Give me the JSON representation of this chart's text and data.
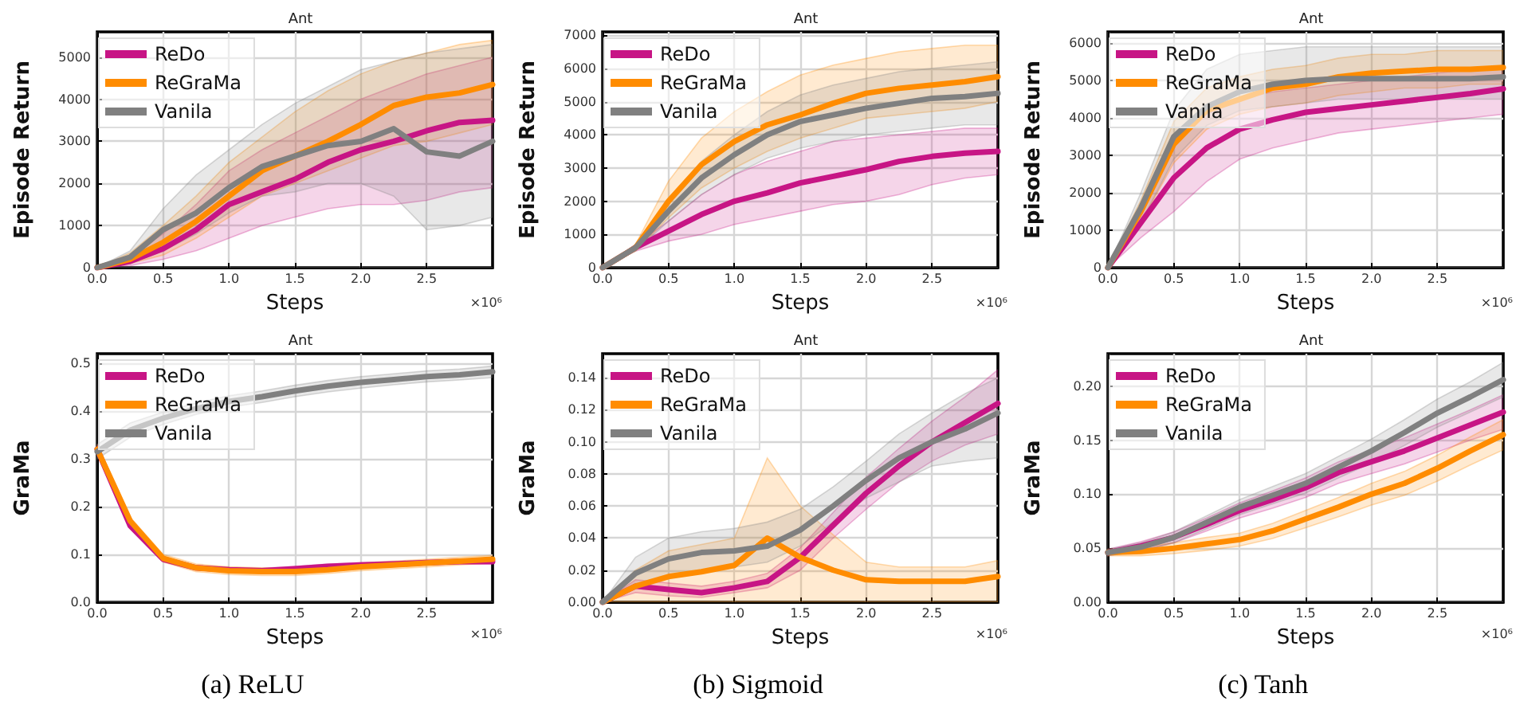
{
  "chart_data": [
    {
      "type": "line",
      "title": "Ant",
      "xlabel": "Steps",
      "ylabel": "Episode Return",
      "x": [
        0,
        0.25,
        0.5,
        0.75,
        1,
        1.25,
        1.5,
        1.75,
        2,
        2.25,
        2.5,
        2.75,
        3
      ],
      "xlim": [
        0,
        3
      ],
      "xticks": [
        {
          "value": 0,
          "label": "0.0"
        },
        {
          "value": 0.5,
          "label": "0.5"
        },
        {
          "value": 1,
          "label": "1.0"
        },
        {
          "value": 1.5,
          "label": "1.5"
        },
        {
          "value": 2,
          "label": "2.0"
        },
        {
          "value": 2.5,
          "label": "2.5"
        }
      ],
      "ylim": [
        0,
        5600
      ],
      "yticks": [
        0,
        1000,
        2000,
        3000,
        4000,
        5000
      ],
      "grid": true,
      "legend": "top left",
      "annotations": [
        "×10⁶"
      ],
      "series": [
        {
          "name": "ReDo",
          "color": "#c71585",
          "values": [
            0,
            150,
            450,
            900,
            1500,
            1800,
            2100,
            2500,
            2800,
            3000,
            3250,
            3450,
            3500
          ],
          "lower": [
            0,
            50,
            200,
            400,
            700,
            1000,
            1200,
            1400,
            1500,
            1500,
            1600,
            1800,
            1900
          ],
          "upper": [
            0,
            300,
            800,
            1500,
            2300,
            2800,
            3200,
            3600,
            4000,
            4300,
            4600,
            4800,
            5000
          ]
        },
        {
          "name": "ReGraMa",
          "color": "#ff8c00",
          "values": [
            0,
            200,
            600,
            1100,
            1700,
            2300,
            2650,
            3000,
            3400,
            3850,
            4050,
            4150,
            4350
          ],
          "lower": [
            0,
            100,
            300,
            700,
            1200,
            1700,
            2000,
            2300,
            2600,
            2900,
            3000,
            3200,
            3400
          ],
          "upper": [
            0,
            350,
            1000,
            1700,
            2500,
            3100,
            3700,
            4200,
            4600,
            4900,
            5100,
            5300,
            5400
          ]
        },
        {
          "name": "Vanila",
          "color": "#808080",
          "values": [
            0,
            250,
            900,
            1300,
            1900,
            2400,
            2650,
            2900,
            3000,
            3300,
            2750,
            2650,
            3000
          ],
          "lower": [
            0,
            100,
            400,
            800,
            1300,
            1700,
            1800,
            2000,
            2000,
            1700,
            900,
            1000,
            1200
          ],
          "upper": [
            0,
            400,
            1400,
            2200,
            2800,
            3400,
            3900,
            4300,
            4700,
            4900,
            5100,
            5200,
            5300
          ]
        }
      ]
    },
    {
      "type": "line",
      "title": "Ant",
      "xlabel": "Steps",
      "ylabel": "Episode Return",
      "x": [
        0,
        0.25,
        0.5,
        0.75,
        1,
        1.25,
        1.5,
        1.75,
        2,
        2.25,
        2.5,
        2.75,
        3
      ],
      "xlim": [
        0,
        3
      ],
      "xticks": [
        {
          "value": 0,
          "label": "0.0"
        },
        {
          "value": 0.5,
          "label": "0.5"
        },
        {
          "value": 1,
          "label": "1.0"
        },
        {
          "value": 1.5,
          "label": "1.5"
        },
        {
          "value": 2,
          "label": "2.0"
        },
        {
          "value": 2.5,
          "label": "2.5"
        }
      ],
      "ylim": [
        0,
        7100
      ],
      "yticks": [
        0,
        1000,
        2000,
        3000,
        4000,
        5000,
        6000,
        7000
      ],
      "grid": true,
      "legend": "top left",
      "annotations": [
        "×10⁶"
      ],
      "series": [
        {
          "name": "ReDo",
          "color": "#c71585",
          "values": [
            0,
            600,
            1100,
            1600,
            2000,
            2250,
            2550,
            2750,
            2950,
            3200,
            3350,
            3450,
            3500
          ],
          "lower": [
            0,
            500,
            800,
            1000,
            1300,
            1500,
            1700,
            1900,
            2000,
            2200,
            2500,
            2700,
            2800
          ],
          "upper": [
            0,
            700,
            1400,
            2200,
            2800,
            3200,
            3500,
            3800,
            3900,
            4000,
            4100,
            4200,
            4200
          ]
        },
        {
          "name": "ReGraMa",
          "color": "#ff8c00",
          "values": [
            0,
            600,
            2000,
            3100,
            3800,
            4300,
            4600,
            4950,
            5250,
            5400,
            5500,
            5600,
            5750
          ],
          "lower": [
            0,
            500,
            1500,
            2400,
            3000,
            3500,
            3900,
            4200,
            4500,
            4600,
            4700,
            4800,
            5000
          ],
          "upper": [
            0,
            700,
            2600,
            3900,
            4700,
            5300,
            5800,
            6100,
            6300,
            6500,
            6600,
            6700,
            6700
          ]
        },
        {
          "name": "Vanila",
          "color": "#808080",
          "values": [
            0,
            600,
            1700,
            2700,
            3400,
            4000,
            4400,
            4600,
            4800,
            4950,
            5100,
            5150,
            5250
          ],
          "lower": [
            0,
            500,
            1400,
            2200,
            2800,
            3300,
            3600,
            3800,
            4000,
            4100,
            4200,
            4300,
            4300
          ],
          "upper": [
            0,
            700,
            2000,
            3200,
            4000,
            4700,
            5200,
            5500,
            5700,
            5900,
            6000,
            6100,
            6200
          ]
        }
      ]
    },
    {
      "type": "line",
      "title": "Ant",
      "xlabel": "Steps",
      "ylabel": "Episode Return",
      "x": [
        0,
        0.25,
        0.5,
        0.75,
        1,
        1.25,
        1.5,
        1.75,
        2,
        2.25,
        2.5,
        2.75,
        3
      ],
      "xlim": [
        0,
        3
      ],
      "xticks": [
        {
          "value": 0,
          "label": "0.0"
        },
        {
          "value": 0.5,
          "label": "0.5"
        },
        {
          "value": 1,
          "label": "1.0"
        },
        {
          "value": 1.5,
          "label": "1.5"
        },
        {
          "value": 2,
          "label": "2.0"
        },
        {
          "value": 2.5,
          "label": "2.5"
        }
      ],
      "ylim": [
        0,
        6300
      ],
      "yticks": [
        0,
        1000,
        2000,
        3000,
        4000,
        5000,
        6000
      ],
      "grid": true,
      "legend": "top left",
      "annotations": [
        "×10⁶"
      ],
      "series": [
        {
          "name": "ReDo",
          "color": "#c71585",
          "values": [
            0,
            1200,
            2400,
            3200,
            3700,
            3950,
            4150,
            4250,
            4350,
            4450,
            4550,
            4650,
            4780
          ],
          "lower": [
            0,
            800,
            1500,
            2300,
            2900,
            3200,
            3400,
            3600,
            3700,
            3800,
            3900,
            4000,
            4100
          ],
          "upper": [
            0,
            1600,
            3300,
            4100,
            4500,
            4700,
            4800,
            4900,
            5000,
            5100,
            5200,
            5300,
            5400
          ]
        },
        {
          "name": "ReGraMa",
          "color": "#ff8c00",
          "values": [
            0,
            1500,
            3300,
            4200,
            4500,
            4800,
            4900,
            5100,
            5200,
            5250,
            5300,
            5300,
            5350
          ],
          "lower": [
            0,
            1200,
            2800,
            3700,
            4100,
            4300,
            4400,
            4600,
            4700,
            4800,
            4800,
            4900,
            4900
          ],
          "upper": [
            0,
            1800,
            3900,
            4800,
            5100,
            5300,
            5400,
            5600,
            5700,
            5700,
            5800,
            5800,
            5800
          ]
        },
        {
          "name": "Vanila",
          "color": "#808080",
          "values": [
            0,
            1600,
            3500,
            4300,
            4700,
            4900,
            5000,
            5050,
            5050,
            5050,
            5050,
            5050,
            5100
          ],
          "lower": [
            0,
            1200,
            2900,
            3800,
            4200,
            4300,
            4400,
            4500,
            4500,
            4500,
            4500,
            4500,
            4500
          ],
          "upper": [
            0,
            2000,
            4200,
            5300,
            5700,
            5800,
            5900,
            5900,
            5900,
            5900,
            5900,
            5900,
            5900
          ]
        }
      ]
    },
    {
      "type": "line",
      "title": "Ant",
      "xlabel": "Steps",
      "ylabel": "GraMa",
      "x": [
        0,
        0.25,
        0.5,
        0.75,
        1,
        1.25,
        1.5,
        1.75,
        2,
        2.25,
        2.5,
        2.75,
        3
      ],
      "xlim": [
        0,
        3
      ],
      "xticks": [
        {
          "value": 0,
          "label": "0.0"
        },
        {
          "value": 0.5,
          "label": "0.5"
        },
        {
          "value": 1,
          "label": "1.0"
        },
        {
          "value": 1.5,
          "label": "1.5"
        },
        {
          "value": 2,
          "label": "2.0"
        },
        {
          "value": 2.5,
          "label": "2.5"
        }
      ],
      "ylim": [
        0,
        0.52
      ],
      "yticks": [
        {
          "value": 0,
          "label": "0.0"
        },
        0.1,
        0.2,
        0.3,
        0.4,
        0.5
      ],
      "grid": true,
      "legend": "top left",
      "annotations": [
        "×10⁶",
        "(a) ReLU"
      ],
      "series": [
        {
          "name": "ReDo",
          "color": "#c71585",
          "values": [
            0.32,
            0.16,
            0.09,
            0.072,
            0.068,
            0.066,
            0.07,
            0.075,
            0.078,
            0.08,
            0.083,
            0.085,
            0.085
          ],
          "lower": [
            0.31,
            0.155,
            0.085,
            0.067,
            0.063,
            0.061,
            0.065,
            0.07,
            0.073,
            0.075,
            0.078,
            0.08,
            0.08
          ],
          "upper": [
            0.33,
            0.165,
            0.095,
            0.077,
            0.073,
            0.071,
            0.075,
            0.08,
            0.083,
            0.085,
            0.088,
            0.09,
            0.09
          ]
        },
        {
          "name": "ReGraMa",
          "color": "#ff8c00",
          "values": [
            0.32,
            0.17,
            0.092,
            0.072,
            0.066,
            0.064,
            0.064,
            0.068,
            0.074,
            0.078,
            0.082,
            0.086,
            0.09
          ],
          "lower": [
            0.31,
            0.162,
            0.084,
            0.064,
            0.058,
            0.056,
            0.056,
            0.06,
            0.066,
            0.07,
            0.074,
            0.078,
            0.082
          ],
          "upper": [
            0.33,
            0.178,
            0.1,
            0.08,
            0.074,
            0.072,
            0.072,
            0.076,
            0.082,
            0.086,
            0.09,
            0.094,
            0.098
          ]
        },
        {
          "name": "Vanila",
          "color": "#808080",
          "values": [
            0.315,
            0.36,
            0.385,
            0.405,
            0.42,
            0.43,
            0.442,
            0.452,
            0.46,
            0.466,
            0.472,
            0.476,
            0.482
          ],
          "lower": [
            0.3,
            0.345,
            0.372,
            0.393,
            0.408,
            0.418,
            0.43,
            0.44,
            0.448,
            0.455,
            0.461,
            0.465,
            0.47
          ],
          "upper": [
            0.33,
            0.375,
            0.398,
            0.417,
            0.432,
            0.442,
            0.454,
            0.464,
            0.472,
            0.478,
            0.484,
            0.488,
            0.494
          ]
        }
      ]
    },
    {
      "type": "line",
      "title": "Ant",
      "xlabel": "Steps",
      "ylabel": "GraMa",
      "x": [
        0,
        0.25,
        0.5,
        0.75,
        1,
        1.25,
        1.5,
        1.75,
        2,
        2.25,
        2.5,
        2.75,
        3
      ],
      "xlim": [
        0,
        3
      ],
      "xticks": [
        {
          "value": 0,
          "label": "0.0"
        },
        {
          "value": 0.5,
          "label": "0.5"
        },
        {
          "value": 1,
          "label": "1.0"
        },
        {
          "value": 1.5,
          "label": "1.5"
        },
        {
          "value": 2,
          "label": "2.0"
        },
        {
          "value": 2.5,
          "label": "2.5"
        }
      ],
      "ylim": [
        0,
        0.155
      ],
      "yticks": [
        {
          "value": 0,
          "label": "0.00"
        },
        {
          "value": 0.02,
          "label": "0.02"
        },
        {
          "value": 0.04,
          "label": "0.04"
        },
        {
          "value": 0.06,
          "label": "0.06"
        },
        {
          "value": 0.08,
          "label": "0.08"
        },
        {
          "value": 0.1,
          "label": "0.10"
        },
        {
          "value": 0.12,
          "label": "0.12"
        },
        {
          "value": 0.14,
          "label": "0.14"
        }
      ],
      "grid": true,
      "legend": "top left",
      "annotations": [
        "×10⁶",
        "(b) Sigmoid"
      ],
      "series": [
        {
          "name": "ReDo",
          "color": "#c71585",
          "values": [
            0,
            0.01,
            0.008,
            0.006,
            0.009,
            0.013,
            0.028,
            0.048,
            0.068,
            0.085,
            0.1,
            0.112,
            0.124
          ],
          "lower": [
            0,
            0.006,
            0.004,
            0.003,
            0.006,
            0.009,
            0.02,
            0.04,
            0.058,
            0.075,
            0.088,
            0.098,
            0.105
          ],
          "upper": [
            0,
            0.014,
            0.012,
            0.01,
            0.013,
            0.018,
            0.034,
            0.056,
            0.078,
            0.096,
            0.113,
            0.128,
            0.145
          ]
        },
        {
          "name": "ReGraMa",
          "color": "#ff8c00",
          "values": [
            0,
            0.01,
            0.016,
            0.019,
            0.023,
            0.04,
            0.028,
            0.02,
            0.014,
            0.013,
            0.013,
            0.013,
            0.016
          ],
          "lower": [
            0,
            0,
            0,
            0,
            0,
            0,
            0,
            0,
            0,
            0,
            0,
            0,
            0
          ],
          "upper": [
            0,
            0.02,
            0.032,
            0.036,
            0.04,
            0.09,
            0.06,
            0.042,
            0.025,
            0.022,
            0.022,
            0.022,
            0.026
          ]
        },
        {
          "name": "Vanila",
          "color": "#808080",
          "values": [
            0,
            0.018,
            0.027,
            0.031,
            0.032,
            0.035,
            0.045,
            0.06,
            0.076,
            0.09,
            0.1,
            0.108,
            0.118
          ],
          "lower": [
            0,
            0.01,
            0.016,
            0.02,
            0.022,
            0.025,
            0.035,
            0.05,
            0.065,
            0.075,
            0.085,
            0.088,
            0.09
          ],
          "upper": [
            0,
            0.028,
            0.04,
            0.044,
            0.046,
            0.05,
            0.058,
            0.072,
            0.088,
            0.105,
            0.118,
            0.13,
            0.14
          ]
        }
      ]
    },
    {
      "type": "line",
      "title": "Ant",
      "xlabel": "Steps",
      "ylabel": "GraMa",
      "x": [
        0,
        0.25,
        0.5,
        0.75,
        1,
        1.25,
        1.5,
        1.75,
        2,
        2.25,
        2.5,
        2.75,
        3
      ],
      "xlim": [
        0,
        3
      ],
      "xticks": [
        {
          "value": 0,
          "label": "0.0"
        },
        {
          "value": 0.5,
          "label": "0.5"
        },
        {
          "value": 1,
          "label": "1.0"
        },
        {
          "value": 1.5,
          "label": "1.5"
        },
        {
          "value": 2,
          "label": "2.0"
        },
        {
          "value": 2.5,
          "label": "2.5"
        }
      ],
      "ylim": [
        0,
        0.23
      ],
      "yticks": [
        {
          "value": 0,
          "label": "0.00"
        },
        {
          "value": 0.05,
          "label": "0.05"
        },
        {
          "value": 0.1,
          "label": "0.10"
        },
        {
          "value": 0.15,
          "label": "0.15"
        },
        {
          "value": 0.2,
          "label": "0.20"
        }
      ],
      "grid": true,
      "legend": "top left",
      "annotations": [
        "×10⁶",
        "(c) Tanh"
      ],
      "series": [
        {
          "name": "ReDo",
          "color": "#c71585",
          "values": [
            0.046,
            0.052,
            0.06,
            0.072,
            0.085,
            0.095,
            0.106,
            0.12,
            0.13,
            0.14,
            0.152,
            0.164,
            0.176
          ],
          "lower": [
            0.043,
            0.048,
            0.055,
            0.066,
            0.078,
            0.087,
            0.097,
            0.11,
            0.119,
            0.128,
            0.139,
            0.15,
            0.16
          ],
          "upper": [
            0.049,
            0.056,
            0.065,
            0.078,
            0.092,
            0.103,
            0.115,
            0.13,
            0.141,
            0.152,
            0.165,
            0.178,
            0.192
          ]
        },
        {
          "name": "ReGraMa",
          "color": "#ff8c00",
          "values": [
            0.046,
            0.047,
            0.05,
            0.054,
            0.058,
            0.066,
            0.077,
            0.088,
            0.1,
            0.11,
            0.124,
            0.14,
            0.155
          ],
          "lower": [
            0.043,
            0.043,
            0.045,
            0.048,
            0.052,
            0.059,
            0.069,
            0.079,
            0.09,
            0.099,
            0.112,
            0.127,
            0.141
          ],
          "upper": [
            0.049,
            0.051,
            0.055,
            0.06,
            0.064,
            0.073,
            0.085,
            0.097,
            0.11,
            0.121,
            0.136,
            0.153,
            0.169
          ]
        },
        {
          "name": "Vanila",
          "color": "#808080",
          "values": [
            0.046,
            0.051,
            0.06,
            0.074,
            0.088,
            0.099,
            0.11,
            0.125,
            0.14,
            0.157,
            0.175,
            0.19,
            0.206
          ],
          "lower": [
            0.043,
            0.047,
            0.055,
            0.068,
            0.081,
            0.091,
            0.101,
            0.115,
            0.129,
            0.145,
            0.162,
            0.176,
            0.19
          ],
          "upper": [
            0.049,
            0.055,
            0.065,
            0.08,
            0.095,
            0.107,
            0.119,
            0.135,
            0.151,
            0.169,
            0.188,
            0.204,
            0.222
          ]
        }
      ]
    }
  ]
}
